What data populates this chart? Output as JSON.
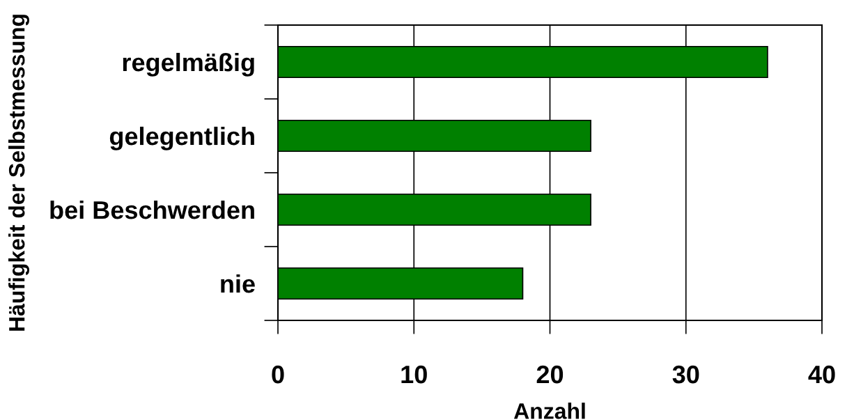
{
  "chart_data": {
    "type": "bar",
    "orientation": "horizontal",
    "xlabel": "Anzahl",
    "ylabel": "Häufigkeit der Selbstmessung",
    "categories": [
      "regelmäßig",
      "gelegentlich",
      "bei Beschwerden",
      "nie"
    ],
    "values": [
      36,
      23,
      23,
      18
    ],
    "color": "#008000",
    "xlim": [
      0,
      40
    ],
    "xticks": [
      0,
      10,
      20,
      30,
      40
    ],
    "grid": "x"
  }
}
